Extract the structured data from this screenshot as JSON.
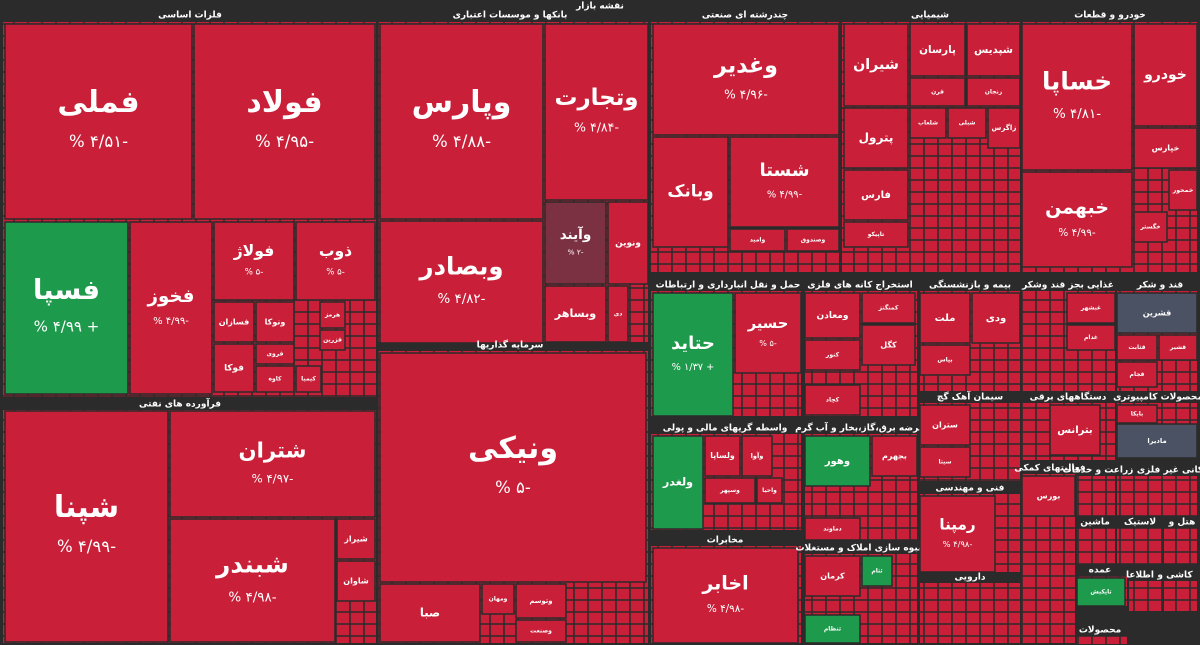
{
  "title": "نقشه بازار",
  "tile_color": "#c91f38",
  "sectors": [
    {
      "name": "فلزات اساسی",
      "tiles": [
        {
          "symbol": "فملی",
          "change": "-۴/۵۱ %"
        },
        {
          "symbol": "فولاد",
          "change": "-۴/۹۵ %"
        },
        {
          "symbol": "فسپا",
          "change": "+ ۴/۹۹ %",
          "color": "#1e9a4c"
        },
        {
          "symbol": "فخوز",
          "change": "-۴/۹۹ %"
        },
        {
          "symbol": "فولاژ",
          "change": "-۵ %"
        },
        {
          "symbol": "ذوب",
          "change": "-۵ %"
        },
        {
          "symbol": "فسازان"
        },
        {
          "symbol": "ونوکا"
        },
        {
          "symbol": "فروی"
        },
        {
          "symbol": "فوکا"
        },
        {
          "symbol": "کاوه"
        },
        {
          "symbol": "هرمز"
        },
        {
          "symbol": "فزرین"
        },
        {
          "symbol": "کیمیا"
        }
      ]
    },
    {
      "name": "فرآورده های نفتی",
      "tiles": [
        {
          "symbol": "شپنا",
          "change": "-۴/۹۹ %"
        },
        {
          "symbol": "شتران",
          "change": "-۴/۹۷ %"
        },
        {
          "symbol": "شبندر",
          "change": "-۴/۹۸ %"
        },
        {
          "symbol": "شیراز"
        },
        {
          "symbol": "شاوان"
        }
      ]
    },
    {
      "name": "بانکها و موسسات اعتباری",
      "tiles": [
        {
          "symbol": "وپارس",
          "change": "-۴/۸۸ %"
        },
        {
          "symbol": "وتجارت",
          "change": "-۴/۸۴ %"
        },
        {
          "symbol": "وبصادر",
          "change": "-۴/۸۲ %"
        },
        {
          "symbol": "وآیند",
          "change": "-۲ %",
          "color": "#7b3142"
        },
        {
          "symbol": "ونوین"
        },
        {
          "symbol": "وبساهر"
        },
        {
          "symbol": "دی"
        }
      ]
    },
    {
      "name": "سرمایه گذاریها",
      "tiles": [
        {
          "symbol": "ونیکی",
          "change": "-۵ %"
        },
        {
          "symbol": "صبا"
        },
        {
          "symbol": "وتوسم"
        },
        {
          "symbol": "ومهان"
        },
        {
          "symbol": "وصنعت"
        }
      ]
    },
    {
      "name": "چندرشته ای صنعتی",
      "tiles": [
        {
          "symbol": "وغدیر",
          "change": "-۴/۹۶ %"
        },
        {
          "symbol": "وبانک"
        },
        {
          "symbol": "شستا",
          "change": "-۴/۹۹ %"
        },
        {
          "symbol": "وامید"
        },
        {
          "symbol": "وصندوق"
        }
      ]
    },
    {
      "name": "شیمیایی",
      "tiles": [
        {
          "symbol": "پارسان"
        },
        {
          "symbol": "شپدیس"
        },
        {
          "symbol": "شیران"
        },
        {
          "symbol": "فرن"
        },
        {
          "symbol": "زنجان"
        },
        {
          "symbol": "پترول"
        },
        {
          "symbol": "شلعاب"
        },
        {
          "symbol": "شبلی"
        },
        {
          "symbol": "زاگرس"
        },
        {
          "symbol": "فارس"
        },
        {
          "symbol": "تاپیکو"
        }
      ]
    },
    {
      "name": "خودرو و قطعات",
      "tiles": [
        {
          "symbol": "خساپا",
          "change": "-۴/۸۱ %"
        },
        {
          "symbol": "خبهمن",
          "change": "-۴/۹۹ %"
        },
        {
          "symbol": "خودرو"
        },
        {
          "symbol": "خپارس"
        },
        {
          "symbol": "خمحور"
        },
        {
          "symbol": "خگستر"
        }
      ]
    },
    {
      "name": "حمل و نقل انبارداری و ارتباطات",
      "tiles": [
        {
          "symbol": "حتاید",
          "change": "+ ۱/۳۷ %",
          "color": "#1e9a4c"
        },
        {
          "symbol": "حسیر",
          "change": "-۵ %"
        }
      ]
    },
    {
      "name": "استخراج کانه های فلزی",
      "tiles": [
        {
          "symbol": "ومعادن"
        },
        {
          "symbol": "کمنگنز"
        },
        {
          "symbol": "کگل"
        },
        {
          "symbol": "کنور"
        },
        {
          "symbol": "کچاد"
        }
      ]
    },
    {
      "name": "بیمه و بازنشستگی",
      "tiles": [
        {
          "symbol": "ملت"
        },
        {
          "symbol": "ودی"
        },
        {
          "symbol": "بپاس"
        }
      ]
    },
    {
      "name": "غذایی بجز قند وشکر",
      "tiles": [
        {
          "symbol": "غبشهر"
        },
        {
          "symbol": "غدام"
        }
      ]
    },
    {
      "name": "قند و شکر",
      "tiles": [
        {
          "symbol": "قشرین",
          "color": "#4b5263"
        },
        {
          "symbol": "قثابت"
        },
        {
          "symbol": "قشیر"
        },
        {
          "symbol": "قجام"
        }
      ]
    },
    {
      "name": "واسطه گریهای مالی و پولی",
      "tiles": [
        {
          "symbol": "ولغدر",
          "color": "#1e9a4c"
        },
        {
          "symbol": "ولساپا"
        },
        {
          "symbol": "وآوا"
        },
        {
          "symbol": "وسپهر"
        },
        {
          "symbol": "واحیا"
        }
      ]
    },
    {
      "name": "عرضه برق،گاز،بخار و آب گرم",
      "tiles": [
        {
          "symbol": "وهور",
          "color": "#1e9a4c"
        },
        {
          "symbol": "بجهرم"
        },
        {
          "symbol": "دماوند"
        }
      ]
    },
    {
      "name": "سیمان آهک گچ",
      "tiles": [
        {
          "symbol": "ستران"
        },
        {
          "symbol": "سیتا"
        }
      ]
    },
    {
      "name": "دستگاههای برقی",
      "tiles": [
        {
          "symbol": "بترانس"
        }
      ]
    },
    {
      "name": "محصولات کامپیوتری",
      "tiles": [
        {
          "symbol": "بایکا"
        },
        {
          "symbol": "مادیرا",
          "color": "#4b5263"
        }
      ]
    },
    {
      "name": "مخابرات",
      "tiles": [
        {
          "symbol": "اخابر",
          "change": "-۴/۹۸ %"
        }
      ]
    },
    {
      "name": "انبوه سازی املاک و مستغلات",
      "tiles": [
        {
          "symbol": "کرمان"
        },
        {
          "symbol": "ثتام",
          "color": "#1e9a4c"
        },
        {
          "symbol": "ثنظام",
          "color": "#1e9a4c"
        }
      ]
    },
    {
      "name": "فنی و مهندسی",
      "tiles": [
        {
          "symbol": "رمپنا",
          "change": "-۴/۹۸ %"
        }
      ]
    },
    {
      "name": "دارویی",
      "tiles": []
    },
    {
      "name": "فعالیتهای کمکی",
      "tiles": [
        {
          "symbol": "بورس"
        }
      ]
    },
    {
      "name": "زراعت و خدمات",
      "tiles": []
    },
    {
      "name": "کانی غیر فلزی",
      "tiles": []
    },
    {
      "name": "ماشین",
      "tiles": []
    },
    {
      "name": "لاستیک",
      "tiles": []
    },
    {
      "name": "هتل و",
      "tiles": []
    },
    {
      "name": "عمده",
      "tiles": [
        {
          "symbol": "تاپکیش",
          "color": "#1e9a4c"
        }
      ]
    },
    {
      "name": "کاشی و",
      "tiles": []
    },
    {
      "name": "اطلاعا",
      "tiles": []
    },
    {
      "name": "محصولات",
      "tiles": []
    }
  ]
}
